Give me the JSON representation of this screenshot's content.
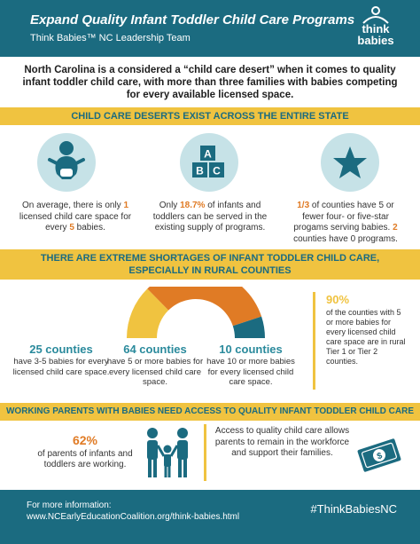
{
  "header": {
    "title": "Expand Quality Infant Toddler Child Care Programs",
    "subtitle": "Think Babies™ NC Leadership Team",
    "logo_line1": "think",
    "logo_line2": "babies"
  },
  "intro": "North Carolina is a considered a “child care desert” when it comes to quality infant toddler child care, with more than three families with babies competing for every available licensed space.",
  "section1": {
    "title": "CHILD CARE DESERTS EXIST ACROSS THE ENTIRE STATE",
    "stats": [
      {
        "pre": "On average, there is only ",
        "hl1": "1",
        "mid": " licensed child care space for every ",
        "hl2": "5",
        "post": " babies.",
        "icon": "baby-icon"
      },
      {
        "pre": "Only ",
        "hl1": "18.7%",
        "mid": " of infants and toddlers can be served in the existing supply of programs.",
        "icon": "abc-blocks-icon"
      },
      {
        "hl1": "1/3",
        "mid": " of counties have 5 or fewer four- or five-star progams serving babies. ",
        "hl2": "2",
        "post": " counties have 0 programs.",
        "icon": "star-icon"
      }
    ],
    "blocks": [
      "A",
      "B",
      "C"
    ]
  },
  "section2": {
    "title_line1": "THERE ARE EXTREME SHORTAGES OF INFANT TODDLER CHILD CARE,",
    "title_line2": "ESPECIALLY IN RURAL COUNTIES",
    "gauge": {
      "segments": [
        25,
        64,
        10
      ],
      "colors": [
        "#f0c340",
        "#e07b25",
        "#1b6b80"
      ]
    },
    "counts": [
      {
        "num": "25 counties",
        "desc": "have 3-5 babies for every licensed child care space."
      },
      {
        "num": "64 counties",
        "desc": "have 5 or more babies for every licensed child care space."
      },
      {
        "num": "10 counties",
        "desc": "have 10 or more babies for every licensed child care space."
      }
    ],
    "rural": {
      "pct": "90%",
      "desc": "of the counties with 5 or more babies for every licensed child care space are in rural Tier 1 or Tier 2 counties."
    }
  },
  "section3": {
    "title": "WORKING PARENTS WITH BABIES NEED ACCESS TO QUALITY INFANT TODDLER CHILD CARE",
    "parents": {
      "pct": "62%",
      "desc": "of parents of infants and toddlers are working."
    },
    "access": "Access to quality child care allows parents to remain in the workforce and support their families.",
    "money_symbol": "$"
  },
  "footer": {
    "info_label": "For more information:",
    "info_url": "www.NCEarlyEducationCoalition.org/think-babies.html",
    "hashtag": "#ThinkBabiesNC"
  }
}
